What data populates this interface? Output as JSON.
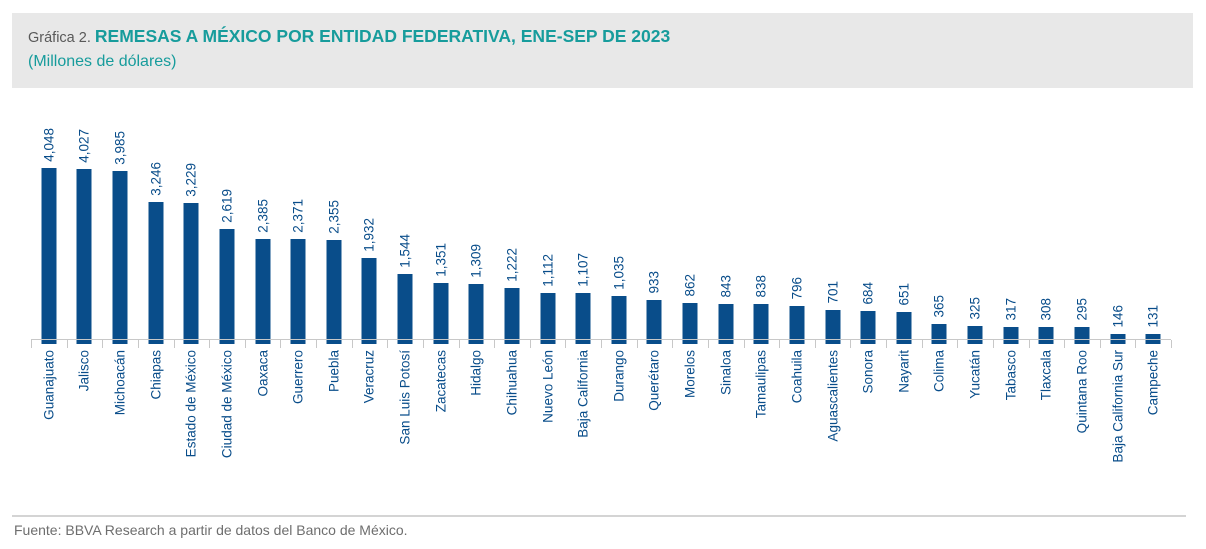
{
  "header": {
    "prefix": "Gráfica 2.",
    "title": "REMESAS A MÉXICO POR ENTIDAD FEDERATIVA, ENE-SEP DE 2023",
    "subtitle": "(Millones de dólares)"
  },
  "footer": {
    "source": "Fuente: BBVA Research a partir de datos del Banco de México."
  },
  "colors": {
    "bar": "#094D8A",
    "data_label": "#094D8A",
    "title_teal": "#179C9C",
    "prefix_gray": "#595959",
    "header_bg": "#E8E8E8",
    "axis": "#C8C8C8",
    "footer_text": "#6E6E6E"
  },
  "chart_data": {
    "type": "bar",
    "title": "REMESAS A MÉXICO POR ENTIDAD FEDERATIVA, ENE-SEP DE 2023",
    "subtitle": "(Millones de dólares)",
    "xlabel": "",
    "ylabel": "Millones de dólares",
    "ylim": [
      0,
      4048
    ],
    "grid": false,
    "legend": false,
    "value_labels": "rotated-90-above-bars",
    "category_labels": "rotated-90-below-axis",
    "categories": [
      "Guanajuato",
      "Jalisco",
      "Michoacán",
      "Chiapas",
      "Estado de México",
      "Ciudad de México",
      "Oaxaca",
      "Guerrero",
      "Puebla",
      "Veracruz",
      "San Luis Potosí",
      "Zacatecas",
      "Hidalgo",
      "Chihuahua",
      "Nuevo León",
      "Baja California",
      "Durango",
      "Querétaro",
      "Morelos",
      "Sinaloa",
      "Tamaulipas",
      "Coahuila",
      "Aguascalientes",
      "Sonora",
      "Nayarit",
      "Colima",
      "Yucatán",
      "Tabasco",
      "Tlaxcala",
      "Quintana Roo",
      "Baja California Sur",
      "Campeche"
    ],
    "values": [
      4048,
      4027,
      3985,
      3246,
      3229,
      2619,
      2385,
      2371,
      2355,
      1932,
      1544,
      1351,
      1309,
      1222,
      1112,
      1107,
      1035,
      933,
      862,
      843,
      838,
      796,
      701,
      684,
      651,
      365,
      325,
      317,
      308,
      295,
      146,
      131
    ]
  }
}
